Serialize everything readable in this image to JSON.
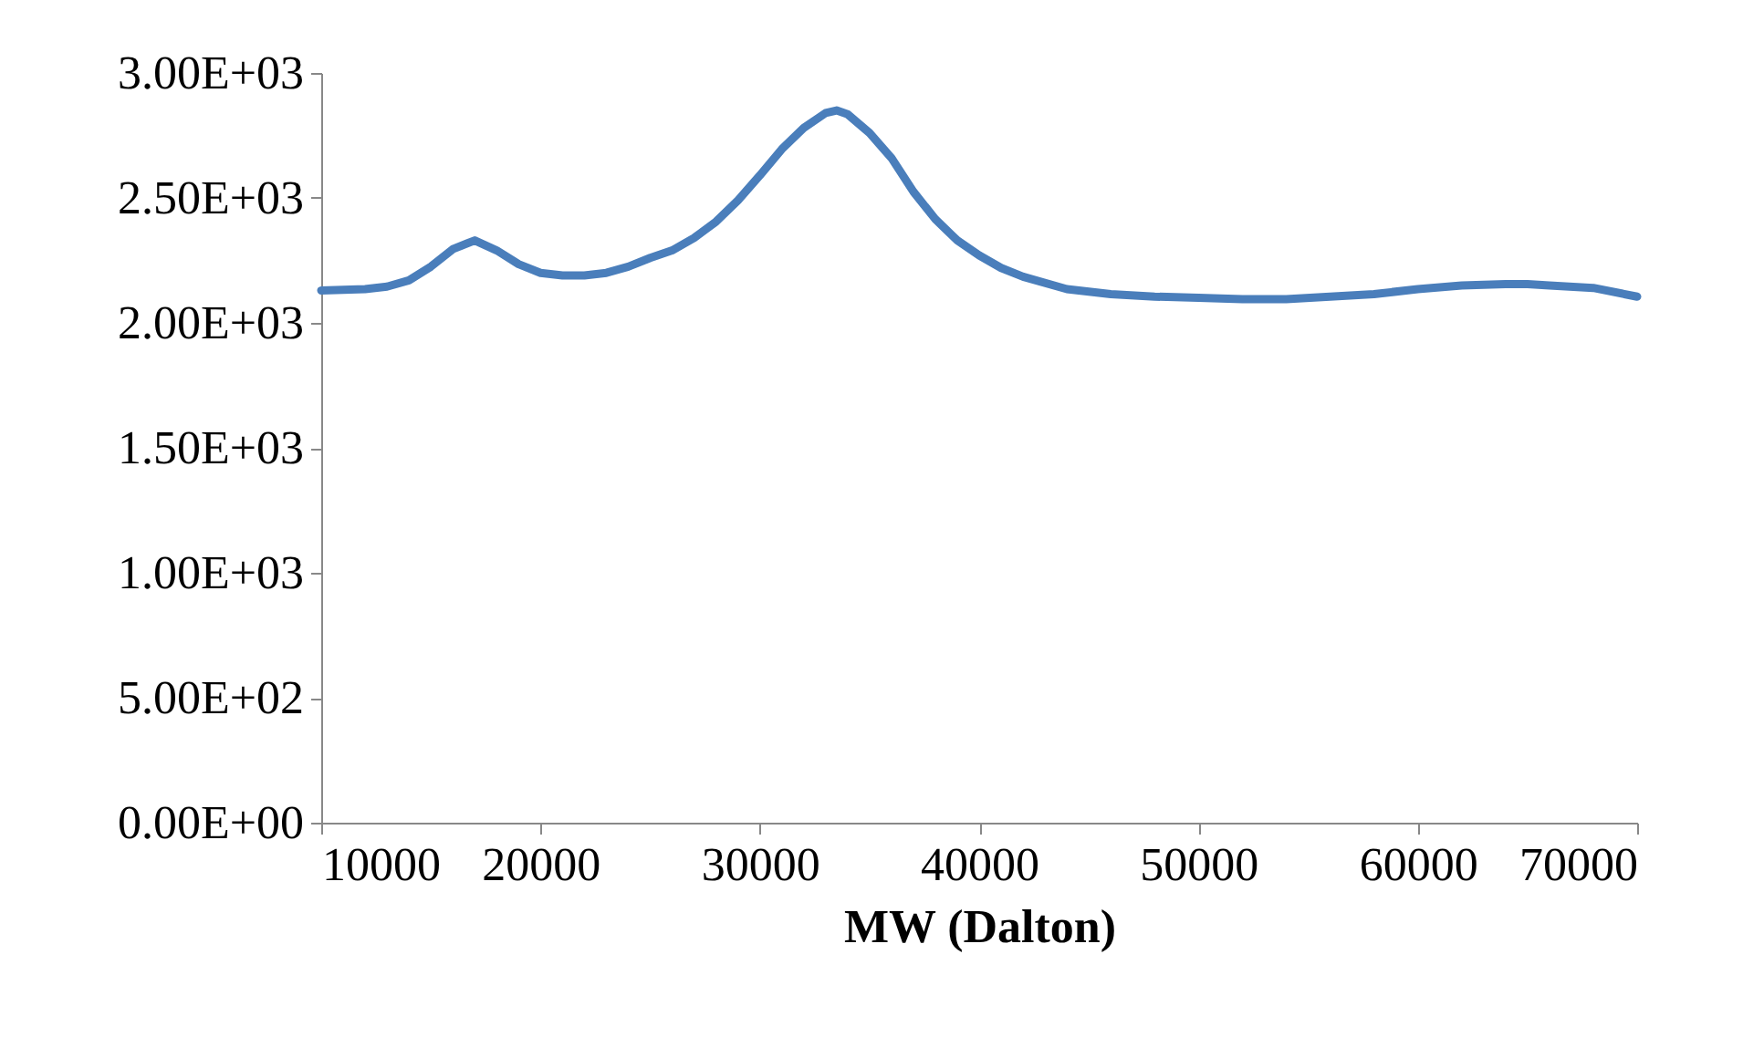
{
  "chart_data": {
    "type": "line",
    "xlabel": "MW (Dalton)",
    "x": [
      10000,
      12000,
      13000,
      14000,
      15000,
      16000,
      17000,
      18000,
      19000,
      20000,
      21000,
      22000,
      23000,
      24000,
      25000,
      26000,
      27000,
      28000,
      29000,
      30000,
      31000,
      32000,
      33000,
      33500,
      34000,
      35000,
      36000,
      37000,
      38000,
      39000,
      40000,
      41000,
      42000,
      44000,
      46000,
      48000,
      50000,
      52000,
      54000,
      56000,
      58000,
      60000,
      62000,
      64000,
      65000,
      66000,
      68000,
      70000
    ],
    "series": [
      {
        "color": "#4a7ebb",
        "values": [
          2130,
          2135,
          2145,
          2170,
          2225,
          2295,
          2330,
          2290,
          2235,
          2200,
          2190,
          2190,
          2200,
          2225,
          2260,
          2290,
          2340,
          2405,
          2490,
          2590,
          2695,
          2780,
          2840,
          2850,
          2835,
          2760,
          2660,
          2525,
          2415,
          2330,
          2270,
          2220,
          2185,
          2135,
          2115,
          2105,
          2100,
          2095,
          2095,
          2105,
          2115,
          2135,
          2150,
          2155,
          2155,
          2150,
          2140,
          2105
        ]
      }
    ],
    "xlim": [
      10000,
      70000
    ],
    "xticks": [
      10000,
      20000,
      30000,
      40000,
      50000,
      60000,
      70000
    ],
    "ylim": [
      0,
      3000
    ],
    "yticks": [
      {
        "value": 0,
        "label": "0.00E+00"
      },
      {
        "value": 500,
        "label": "5.00E+02"
      },
      {
        "value": 1000,
        "label": "1.00E+03"
      },
      {
        "value": 1500,
        "label": "1.50E+03"
      },
      {
        "value": 2000,
        "label": "2.00E+03"
      },
      {
        "value": 2500,
        "label": "2.50E+03"
      },
      {
        "value": 3000,
        "label": "3.00E+03"
      }
    ],
    "grid": false,
    "marker": "none",
    "line_style": "solid"
  }
}
